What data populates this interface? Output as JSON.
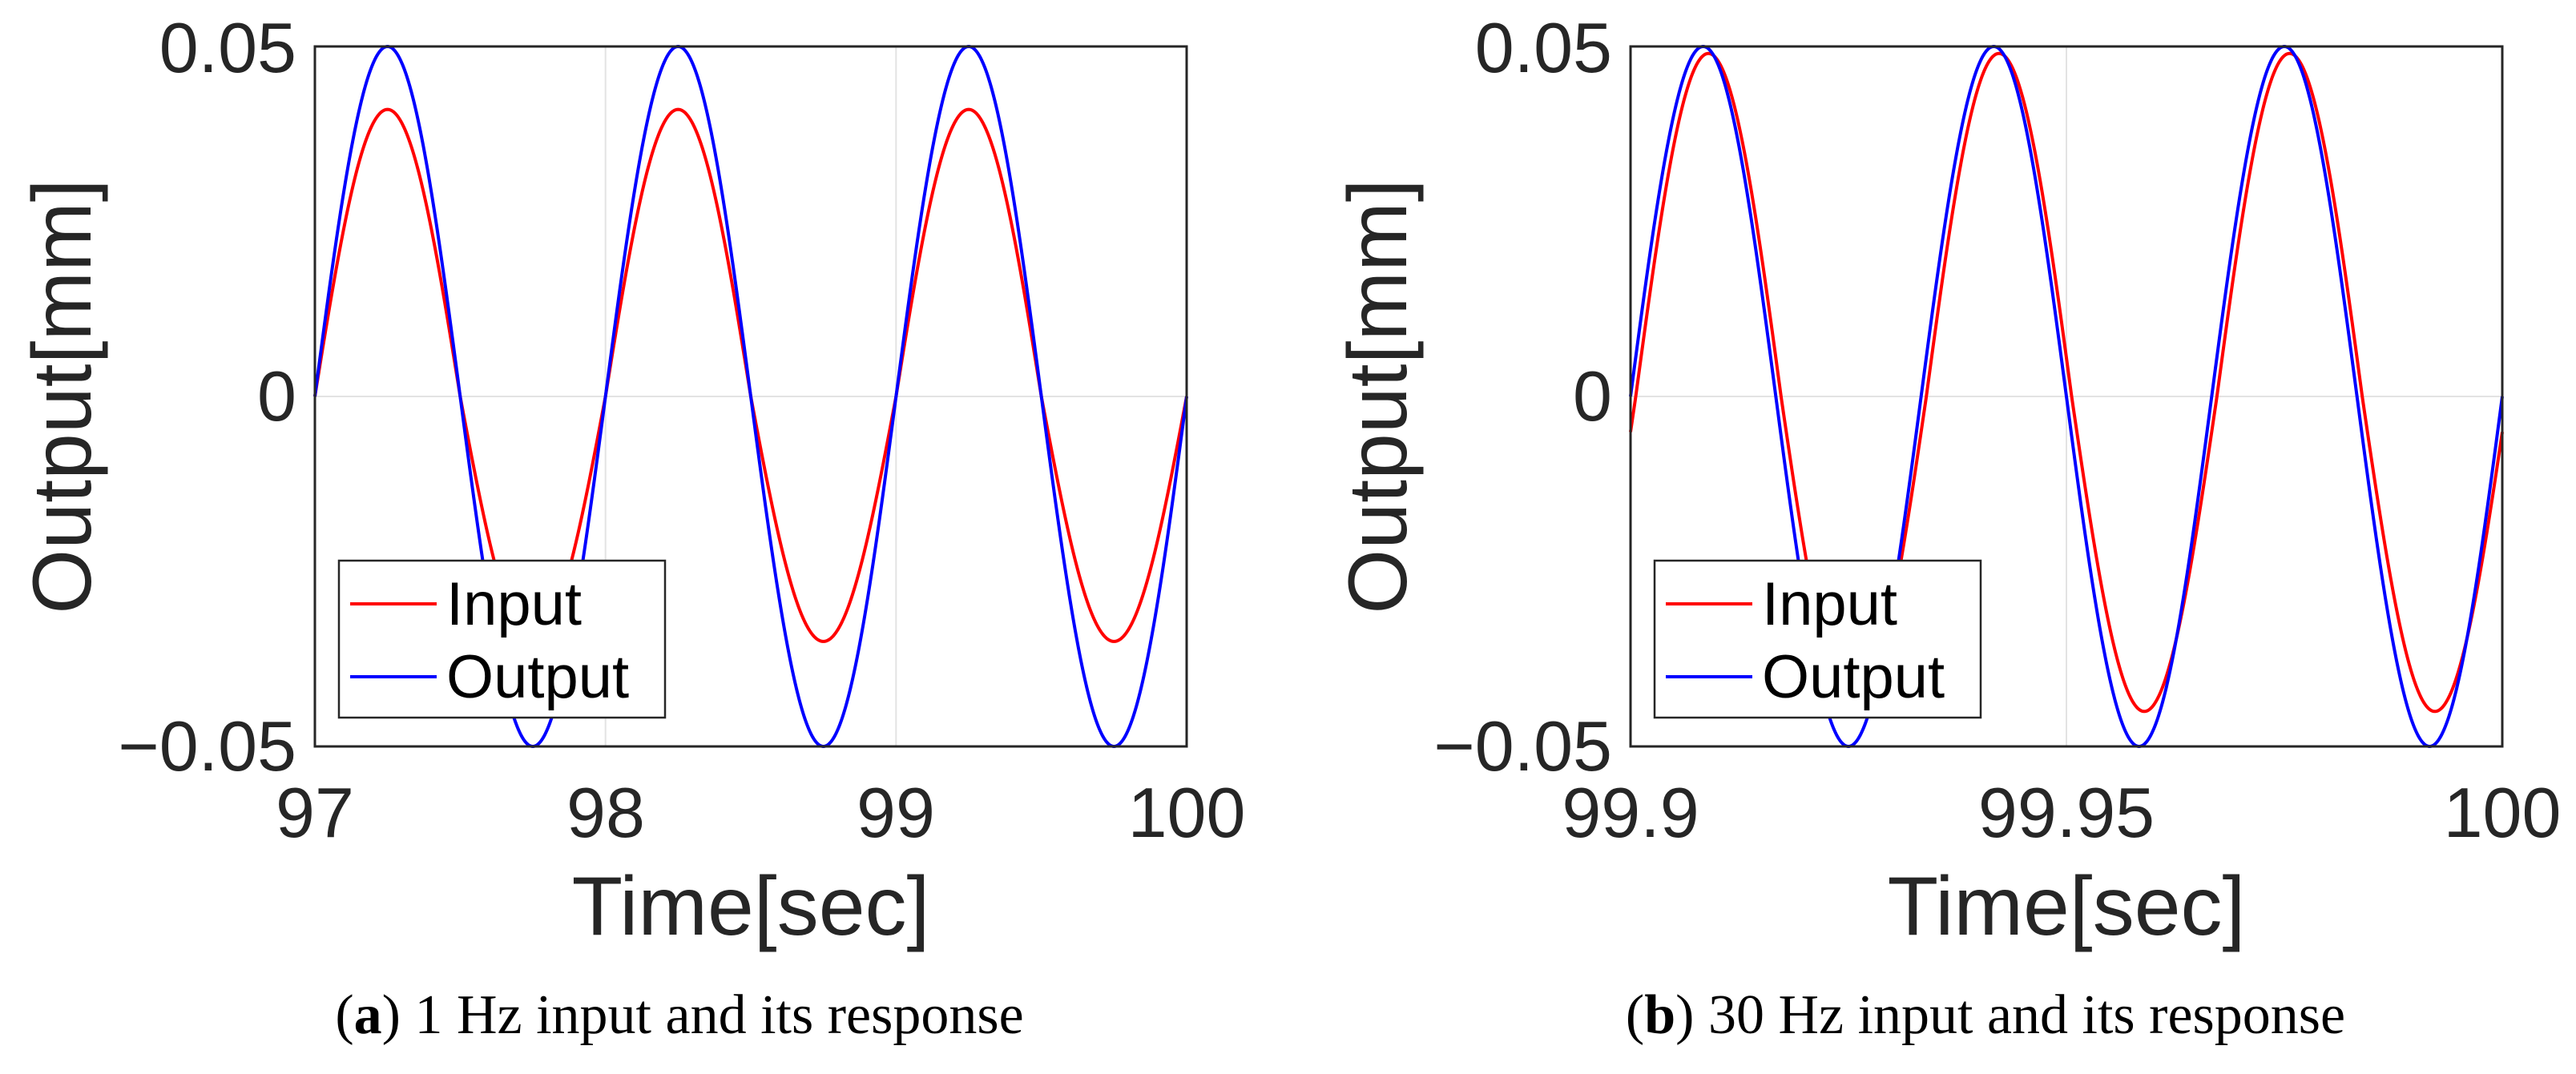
{
  "chart_data": [
    {
      "type": "line",
      "panel": "a",
      "caption_letter": "a",
      "caption_text": " 1 Hz input and its response",
      "xlabel": "Time[sec]",
      "ylabel": "Output[mm]",
      "xlim": [
        97,
        100
      ],
      "ylim": [
        -0.05,
        0.05
      ],
      "xticks": [
        97,
        98,
        99,
        100
      ],
      "xtick_labels": [
        "97",
        "98",
        "99",
        "100"
      ],
      "yticks": [
        -0.05,
        0,
        0.05
      ],
      "ytick_labels": [
        "−0.05",
        "0",
        "0.05"
      ],
      "grid": true,
      "legend_position": "bottom-left",
      "frequency_hz": 1,
      "series": [
        {
          "name": "Input",
          "color": "#ff0000",
          "amplitude_pos": 0.041,
          "amplitude_neg": 0.035,
          "phase_shift_sec": 0.0
        },
        {
          "name": "Output",
          "color": "#0000ff",
          "amplitude_pos": 0.05,
          "amplitude_neg": 0.05,
          "phase_shift_sec": 0.0
        }
      ]
    },
    {
      "type": "line",
      "panel": "b",
      "caption_letter": "b",
      "caption_text": " 30 Hz input and its response",
      "xlabel": "Time[sec]",
      "ylabel": "Output[mm]",
      "xlim": [
        99.9,
        100
      ],
      "ylim": [
        -0.05,
        0.05
      ],
      "xticks": [
        99.9,
        99.95,
        100
      ],
      "xtick_labels": [
        "99.9",
        "99.95",
        "100"
      ],
      "yticks": [
        -0.05,
        0,
        0.05
      ],
      "ytick_labels": [
        "−0.05",
        "0",
        "0.05"
      ],
      "grid": true,
      "legend_position": "bottom-left",
      "frequency_hz": 30,
      "series": [
        {
          "name": "Input",
          "color": "#ff0000",
          "amplitude_pos": 0.049,
          "amplitude_neg": 0.045,
          "phase_shift_sec": 0.0006
        },
        {
          "name": "Output",
          "color": "#0000ff",
          "amplitude_pos": 0.05,
          "amplitude_neg": 0.05,
          "phase_shift_sec": 0.0
        }
      ]
    }
  ]
}
